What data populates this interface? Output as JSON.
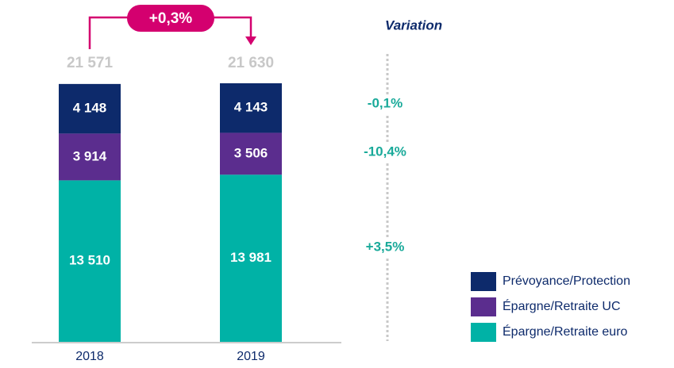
{
  "chart_data": {
    "type": "stacked_bar",
    "categories": [
      "2018",
      "2019"
    ],
    "series": [
      {
        "name": "Épargne/Retraite euro",
        "color": "#00b2a6",
        "values": [
          13510,
          13981
        ],
        "value_labels": [
          "13 510",
          "13 981"
        ],
        "variation": "+3,5%"
      },
      {
        "name": "Épargne/Retraite UC",
        "color": "#5b2d8e",
        "values": [
          3914,
          3506
        ],
        "value_labels": [
          "3 914",
          "3 506"
        ],
        "variation": "-10,4%"
      },
      {
        "name": "Prévoyance/Protection",
        "color": "#0d2a6b",
        "values": [
          4148,
          4143
        ],
        "value_labels": [
          "4 148",
          "4 143"
        ],
        "variation": "-0,1%"
      }
    ],
    "totals": [
      21571,
      21630
    ],
    "total_labels": [
      "21 571",
      "21 630"
    ],
    "growth": "+0,3%",
    "variation_title": "Variation",
    "accent_color": "#d4006f"
  }
}
